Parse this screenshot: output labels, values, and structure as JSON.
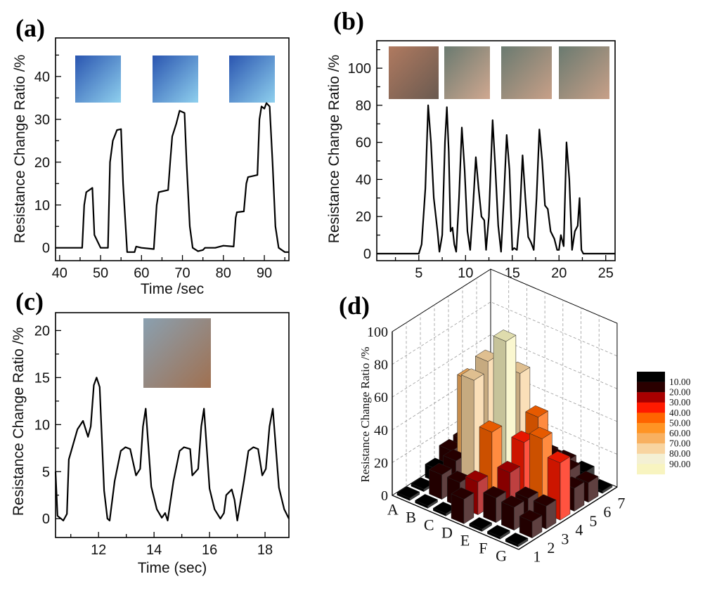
{
  "panels": {
    "a": {
      "label": "(a)"
    },
    "b": {
      "label": "(b)"
    },
    "c": {
      "label": "(c)"
    },
    "d": {
      "label": "(d)"
    }
  },
  "chart_data": [
    {
      "id": "a",
      "type": "line",
      "xlabel": "Time /sec",
      "ylabel": "Resistance Change Ratio /%",
      "xlim": [
        39,
        96
      ],
      "ylim": [
        -3,
        49
      ],
      "xticks": [
        40,
        50,
        60,
        70,
        80,
        90
      ],
      "yticks": [
        0,
        10,
        20,
        30,
        40
      ],
      "x_minor": 5,
      "y_minor": 5,
      "insets": [
        "finger-straight-photo",
        "finger-half-bent-photo",
        "finger-bent-photo"
      ],
      "series": [
        {
          "color": "#000000",
          "points": [
            [
              39,
              0
            ],
            [
              45.5,
              0
            ],
            [
              46,
              10
            ],
            [
              46.5,
              13
            ],
            [
              48,
              14
            ],
            [
              48.5,
              3
            ],
            [
              50,
              0
            ],
            [
              51.8,
              0
            ],
            [
              52.3,
              20
            ],
            [
              53,
              25
            ],
            [
              54,
              27.5
            ],
            [
              55,
              27.7
            ],
            [
              55.5,
              15
            ],
            [
              56.5,
              -1
            ],
            [
              58.3,
              -1
            ],
            [
              58.7,
              0.3
            ],
            [
              60,
              0
            ],
            [
              63,
              -0.3
            ],
            [
              63.7,
              10
            ],
            [
              64.2,
              13
            ],
            [
              66.5,
              13.5
            ],
            [
              67,
              20
            ],
            [
              67.5,
              26
            ],
            [
              68.5,
              29
            ],
            [
              69.3,
              32
            ],
            [
              70.5,
              31.5
            ],
            [
              71,
              20
            ],
            [
              71.8,
              5
            ],
            [
              72.5,
              0
            ],
            [
              73.8,
              -0.8
            ],
            [
              75,
              -0.5
            ],
            [
              75.5,
              0
            ],
            [
              78,
              0
            ],
            [
              80,
              0.5
            ],
            [
              82.5,
              0.3
            ],
            [
              83,
              7
            ],
            [
              83.3,
              8.3
            ],
            [
              85,
              8.5
            ],
            [
              85.6,
              15
            ],
            [
              86,
              16.5
            ],
            [
              88.3,
              17
            ],
            [
              88.8,
              30
            ],
            [
              89.3,
              33
            ],
            [
              90,
              32.5
            ],
            [
              90.5,
              33.8
            ],
            [
              91.3,
              33
            ],
            [
              92,
              20
            ],
            [
              92.7,
              5
            ],
            [
              93.5,
              0
            ],
            [
              95,
              -1
            ],
            [
              96,
              -1
            ]
          ]
        }
      ]
    },
    {
      "id": "b",
      "type": "line",
      "xlabel": "Time /sec",
      "ylabel": "Resistance Change Ratio /%",
      "xlim": [
        0.5,
        26
      ],
      "ylim": [
        -3.8,
        114.8
      ],
      "xticks": [
        5,
        10,
        15,
        20,
        25
      ],
      "yticks": [
        0,
        20,
        40,
        60,
        80,
        100
      ],
      "x_minor": 2.5,
      "y_minor": 10,
      "insets": [
        "knee-sensor-photo",
        "knee-bent-photo-1",
        "knee-bent-photo-2",
        "knee-bent-photo-3"
      ],
      "series": [
        {
          "color": "#000000",
          "points": [
            [
              0.5,
              0
            ],
            [
              5,
              0
            ],
            [
              5.3,
              5
            ],
            [
              5.7,
              35
            ],
            [
              6,
              80
            ],
            [
              6.3,
              60
            ],
            [
              6.6,
              30
            ],
            [
              7,
              12
            ],
            [
              7.2,
              1
            ],
            [
              7.5,
              10
            ],
            [
              7.8,
              60
            ],
            [
              8,
              79
            ],
            [
              8.2,
              55
            ],
            [
              8.4,
              12
            ],
            [
              8.6,
              14
            ],
            [
              8.8,
              5
            ],
            [
              9,
              1
            ],
            [
              9.3,
              30
            ],
            [
              9.6,
              68
            ],
            [
              9.9,
              45
            ],
            [
              10.2,
              12
            ],
            [
              10.5,
              2
            ],
            [
              10.8,
              25
            ],
            [
              11.1,
              52
            ],
            [
              11.4,
              35
            ],
            [
              11.7,
              20
            ],
            [
              12,
              18
            ],
            [
              12.2,
              2
            ],
            [
              12.5,
              20
            ],
            [
              12.9,
              72
            ],
            [
              13.2,
              45
            ],
            [
              13.5,
              15
            ],
            [
              13.8,
              1
            ],
            [
              14.1,
              30
            ],
            [
              14.4,
              64
            ],
            [
              14.7,
              45
            ],
            [
              15,
              2
            ],
            [
              15.2,
              3
            ],
            [
              15.5,
              2
            ],
            [
              15.8,
              20
            ],
            [
              16.1,
              53
            ],
            [
              16.4,
              30
            ],
            [
              16.7,
              9
            ],
            [
              17,
              6
            ],
            [
              17.3,
              2
            ],
            [
              17.6,
              30
            ],
            [
              17.9,
              67
            ],
            [
              18.2,
              50
            ],
            [
              18.5,
              26
            ],
            [
              18.8,
              24
            ],
            [
              19.1,
              12
            ],
            [
              19.5,
              8
            ],
            [
              19.8,
              2
            ],
            [
              20,
              2
            ],
            [
              20.2,
              10
            ],
            [
              20.5,
              4
            ],
            [
              20.8,
              60
            ],
            [
              21.1,
              40
            ],
            [
              21.4,
              2
            ],
            [
              21.7,
              12
            ],
            [
              22,
              15
            ],
            [
              22.2,
              30
            ],
            [
              22.4,
              2
            ],
            [
              22.6,
              0
            ],
            [
              26,
              0
            ]
          ]
        }
      ]
    },
    {
      "id": "c",
      "type": "line",
      "xlabel": "Time (sec)",
      "ylabel": "Resistance Change Ratio /%",
      "xlim": [
        10.45,
        18.86
      ],
      "ylim": [
        -2,
        21.9
      ],
      "xticks": [
        12,
        14,
        16,
        18
      ],
      "yticks": [
        0,
        5,
        10,
        15,
        20
      ],
      "x_minor": 1,
      "y_minor": 2.5,
      "insets": [
        "neck-sensor-photo"
      ],
      "series": [
        {
          "color": "#000000",
          "points": [
            [
              10.45,
              5
            ],
            [
              10.52,
              0.3
            ],
            [
              10.73,
              -0.2
            ],
            [
              10.86,
              0.5
            ],
            [
              10.93,
              6.3
            ],
            [
              11.24,
              9.5
            ],
            [
              11.44,
              10.4
            ],
            [
              11.62,
              8.7
            ],
            [
              11.72,
              9.8
            ],
            [
              11.83,
              14.2
            ],
            [
              11.93,
              15
            ],
            [
              12.04,
              14
            ],
            [
              12.2,
              3
            ],
            [
              12.32,
              0
            ],
            [
              12.4,
              -0.2
            ],
            [
              12.58,
              4
            ],
            [
              12.8,
              7.2
            ],
            [
              12.97,
              7.6
            ],
            [
              13.14,
              7.4
            ],
            [
              13.35,
              4.6
            ],
            [
              13.5,
              5.3
            ],
            [
              13.6,
              9.8
            ],
            [
              13.7,
              11.7
            ],
            [
              13.9,
              3.4
            ],
            [
              14.1,
              1
            ],
            [
              14.28,
              0.1
            ],
            [
              14.4,
              0.6
            ],
            [
              14.49,
              -0.2
            ],
            [
              14.7,
              4
            ],
            [
              14.92,
              7.2
            ],
            [
              15.08,
              7.6
            ],
            [
              15.3,
              7.4
            ],
            [
              15.38,
              4.6
            ],
            [
              15.59,
              5.3
            ],
            [
              15.7,
              9.8
            ],
            [
              15.8,
              11.7
            ],
            [
              16.0,
              3.2
            ],
            [
              16.18,
              1
            ],
            [
              16.39,
              0
            ],
            [
              16.52,
              0.6
            ],
            [
              16.6,
              2.5
            ],
            [
              16.8,
              3.1
            ],
            [
              16.9,
              2
            ],
            [
              17.0,
              -0.2
            ],
            [
              17.24,
              4
            ],
            [
              17.4,
              7.2
            ],
            [
              17.58,
              7.6
            ],
            [
              17.75,
              7.4
            ],
            [
              17.9,
              4.6
            ],
            [
              18.03,
              5.3
            ],
            [
              18.16,
              9.8
            ],
            [
              18.28,
              11.7
            ],
            [
              18.5,
              3.3
            ],
            [
              18.69,
              1
            ],
            [
              18.86,
              0
            ]
          ]
        }
      ]
    },
    {
      "id": "d",
      "type": "bar3d",
      "zlabel": "Resistance Change Ratio /%",
      "zlim": [
        0,
        100
      ],
      "zticks": [
        0,
        20,
        40,
        60,
        80,
        100
      ],
      "rows": [
        "A",
        "B",
        "C",
        "D",
        "E",
        "F",
        "G"
      ],
      "cols": [
        "1",
        "2",
        "3",
        "4",
        "5",
        "6",
        "7"
      ],
      "values": [
        [
          1,
          1,
          8,
          14,
          15,
          12,
          1
        ],
        [
          1,
          15,
          18,
          62,
          20,
          15,
          1
        ],
        [
          1,
          15,
          72,
          78,
          25,
          14,
          1
        ],
        [
          15,
          20,
          45,
          95,
          70,
          20,
          10
        ],
        [
          1,
          15,
          25,
          38,
          48,
          18,
          10
        ],
        [
          1,
          14,
          14,
          45,
          14,
          15,
          8
        ],
        [
          1,
          10,
          14,
          35,
          14,
          12,
          1
        ]
      ],
      "colorscale": {
        "labels": [
          "10.00",
          "20.00",
          "30.00",
          "40.00",
          "50.00",
          "60.00",
          "70.00",
          "80.00",
          "90.00"
        ],
        "colors": [
          "#000000",
          "#2a0000",
          "#a80000",
          "#ff1a00",
          "#ff6400",
          "#ff9424",
          "#f8b060",
          "#f8d4a0",
          "#f4f0d4",
          "#f8f4c0"
        ]
      },
      "legend": "right"
    }
  ]
}
